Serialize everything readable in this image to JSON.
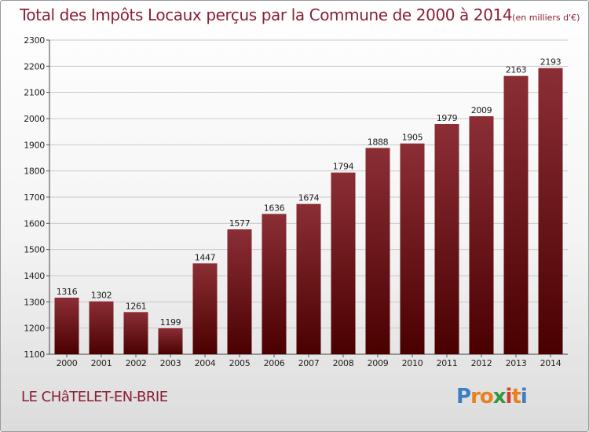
{
  "chart_data": {
    "type": "bar",
    "title": "Total des Impôts Locaux perçus par la Commune de 2000 à 2014",
    "title_unit": "(en milliers d'€)",
    "categories": [
      "2000",
      "2001",
      "2002",
      "2003",
      "2004",
      "2005",
      "2006",
      "2007",
      "2008",
      "2009",
      "2010",
      "2011",
      "2012",
      "2013",
      "2014"
    ],
    "values": [
      1316,
      1302,
      1261,
      1199,
      1447,
      1577,
      1636,
      1674,
      1794,
      1888,
      1905,
      1979,
      2009,
      2163,
      2193
    ],
    "ylim": [
      1100,
      2300
    ],
    "yticks": [
      1100,
      1200,
      1300,
      1400,
      1500,
      1600,
      1700,
      1800,
      1900,
      2000,
      2100,
      2200,
      2300
    ],
    "grid": true,
    "bar_color_top": "#8b2e35",
    "bar_color_bottom": "#4a0000"
  },
  "footer": {
    "commune": "LE CHâTELET-EN-BRIE",
    "logo_letters": [
      "P",
      "r",
      "o",
      "x",
      "i",
      "t",
      "i"
    ],
    "logo_colors": [
      "#3a7fc4",
      "#e8801e",
      "#e8801e",
      "#2e9a3e",
      "#d83a2a",
      "#e8801e",
      "#3a7fc4"
    ]
  },
  "colors": {
    "title": "#8a1f35",
    "grid": "#c8c8c8"
  }
}
